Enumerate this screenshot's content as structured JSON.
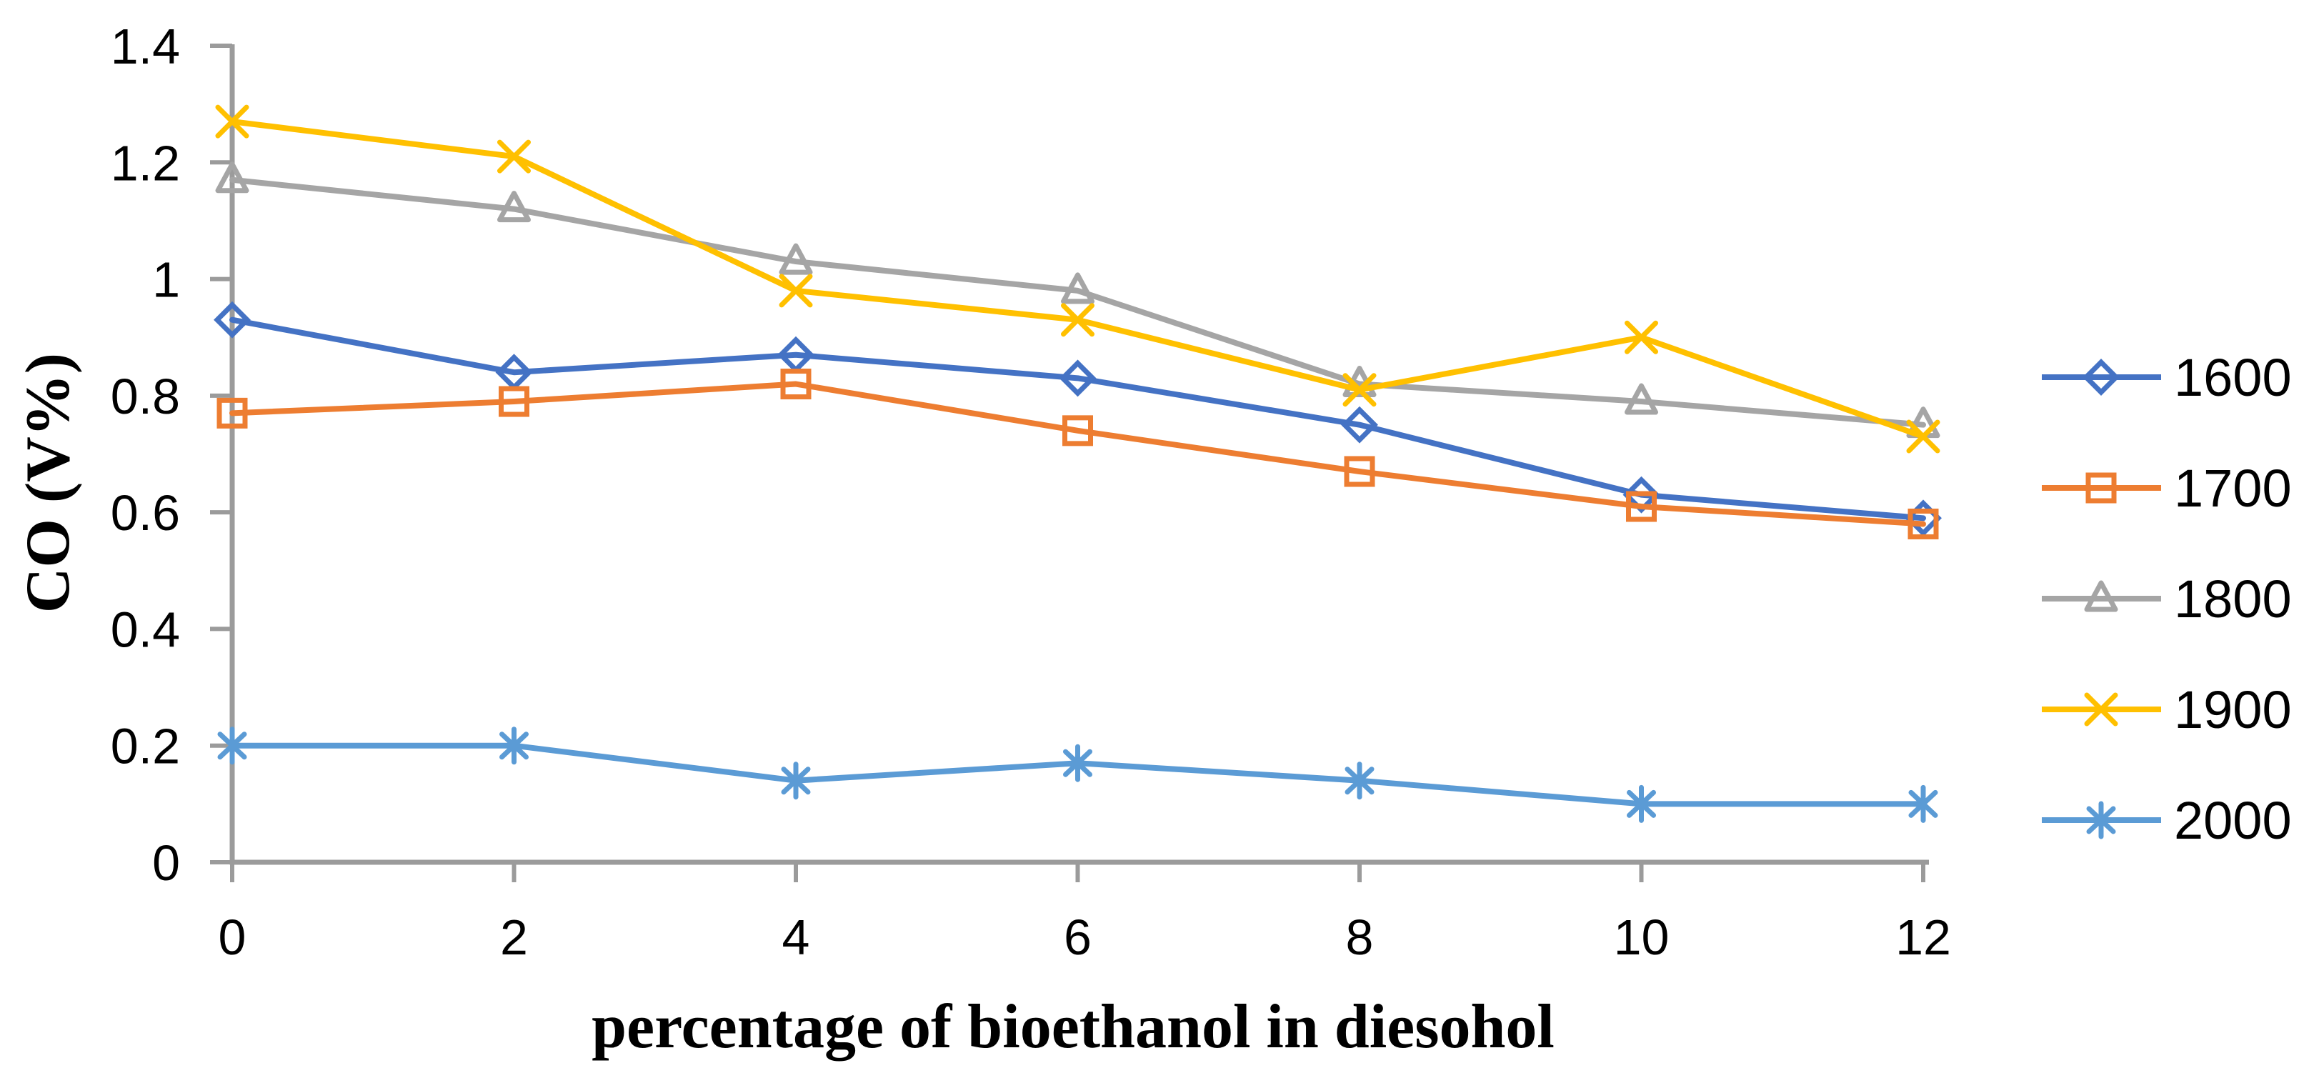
{
  "figure": {
    "kind": "scientific-line-chart",
    "background": "#ffffff"
  },
  "chart_data": {
    "type": "line",
    "title": "",
    "xlabel": "percentage of bioethanol in diesohol",
    "ylabel": "CO (V%)",
    "x": [
      0,
      2,
      4,
      6,
      8,
      10,
      12
    ],
    "x_tick_labels": [
      "0",
      "2",
      "4",
      "6",
      "8",
      "10",
      "12"
    ],
    "y_ticks": [
      0,
      0.2,
      0.4,
      0.6,
      0.8,
      1,
      1.2,
      1.4
    ],
    "y_tick_labels": [
      "0",
      "0.2",
      "0.4",
      "0.6",
      "0.8",
      "1",
      "1.2",
      "1.4"
    ],
    "xlim": [
      0,
      12
    ],
    "ylim": [
      0,
      1.4
    ],
    "grid": false,
    "legend_position": "right",
    "axis_color": "#9B9B9B",
    "text_color": "#000000",
    "series": [
      {
        "name": "1600",
        "marker": "diamond",
        "color": "#4472C4",
        "values": [
          0.93,
          0.84,
          0.87,
          0.83,
          0.75,
          0.63,
          0.59
        ]
      },
      {
        "name": "1700",
        "marker": "square",
        "color": "#ED7D31",
        "values": [
          0.77,
          0.79,
          0.82,
          0.74,
          0.67,
          0.61,
          0.58
        ]
      },
      {
        "name": "1800",
        "marker": "triangle",
        "color": "#A5A5A5",
        "values": [
          1.17,
          1.12,
          1.03,
          0.98,
          0.82,
          0.79,
          0.75
        ]
      },
      {
        "name": "1900",
        "marker": "x",
        "color": "#FFC000",
        "values": [
          1.27,
          1.21,
          0.98,
          0.93,
          0.81,
          0.9,
          0.73
        ]
      },
      {
        "name": "2000",
        "marker": "asterisk",
        "color": "#5B9BD5",
        "values": [
          0.2,
          0.2,
          0.14,
          0.17,
          0.14,
          0.1,
          0.1
        ]
      }
    ]
  }
}
